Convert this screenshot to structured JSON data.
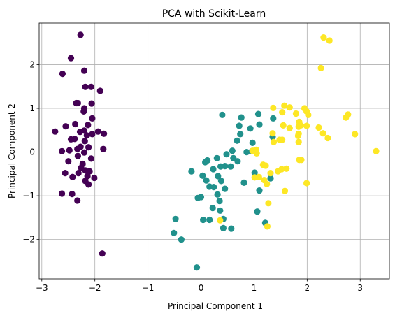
{
  "chart_data": {
    "type": "scatter",
    "title": "PCA with Scikit-Learn",
    "xlabel": "Principal Component 1",
    "ylabel": "Principal Component 2",
    "xlim": [
      -3.05,
      3.55
    ],
    "ylim": [
      -2.9,
      2.95
    ],
    "xticks": [
      -3,
      -2,
      -1,
      0,
      1,
      2,
      3
    ],
    "yticks": [
      -2,
      -1,
      0,
      1,
      2
    ],
    "tick_labels_x": [
      "−3",
      "−2",
      "−1",
      "0",
      "1",
      "2",
      "3"
    ],
    "tick_labels_y": [
      "−2",
      "−1",
      "0",
      "1",
      "2"
    ],
    "grid": true,
    "colors": [
      "#440154",
      "#21918c",
      "#fde725"
    ],
    "series": [
      {
        "color_index": 0,
        "points": [
          [
            -2.27,
            2.68
          ],
          [
            -2.45,
            2.15
          ],
          [
            -2.61,
            1.79
          ],
          [
            -2.2,
            1.86
          ],
          [
            -2.18,
            1.49
          ],
          [
            -2.07,
            1.49
          ],
          [
            -1.9,
            1.4
          ],
          [
            -2.32,
            1.12
          ],
          [
            -2.35,
            1.12
          ],
          [
            -2.06,
            1.11
          ],
          [
            -2.2,
            1.0
          ],
          [
            -2.21,
            0.93
          ],
          [
            -2.05,
            0.77
          ],
          [
            -2.37,
            0.64
          ],
          [
            -2.55,
            0.59
          ],
          [
            -2.13,
            0.62
          ],
          [
            -2.2,
            0.49
          ],
          [
            -2.28,
            0.46
          ],
          [
            -2.75,
            0.47
          ],
          [
            -1.94,
            0.47
          ],
          [
            -1.83,
            0.42
          ],
          [
            -2.05,
            0.41
          ],
          [
            -2.15,
            0.38
          ],
          [
            -2.38,
            0.3
          ],
          [
            -2.45,
            0.29
          ],
          [
            -2.19,
            0.25
          ],
          [
            -2.27,
            0.12
          ],
          [
            -2.12,
            0.11
          ],
          [
            -2.33,
            0.07
          ],
          [
            -2.48,
            0.04
          ],
          [
            -1.84,
            0.07
          ],
          [
            -2.62,
            0.02
          ],
          [
            -2.2,
            -0.01
          ],
          [
            -2.32,
            -0.09
          ],
          [
            -2.07,
            -0.15
          ],
          [
            -2.5,
            -0.21
          ],
          [
            -2.23,
            -0.27
          ],
          [
            -2.26,
            -0.36
          ],
          [
            -2.18,
            -0.42
          ],
          [
            -2.1,
            -0.44
          ],
          [
            -2.56,
            -0.48
          ],
          [
            -2.31,
            -0.48
          ],
          [
            -2.42,
            -0.57
          ],
          [
            -2.14,
            -0.55
          ],
          [
            -2.01,
            -0.59
          ],
          [
            -2.18,
            -0.66
          ],
          [
            -2.12,
            -0.74
          ],
          [
            -2.62,
            -0.95
          ],
          [
            -2.43,
            -0.96
          ],
          [
            -2.33,
            -1.11
          ],
          [
            -1.86,
            -2.32
          ]
        ]
      },
      {
        "color_index": 1,
        "points": [
          [
            0.4,
            0.85
          ],
          [
            0.76,
            0.79
          ],
          [
            1.08,
            0.87
          ],
          [
            1.36,
            0.77
          ],
          [
            0.72,
            0.6
          ],
          [
            0.93,
            0.54
          ],
          [
            1.1,
            0.63
          ],
          [
            0.74,
            0.41
          ],
          [
            1.35,
            0.35
          ],
          [
            0.68,
            0.26
          ],
          [
            0.97,
            0.21
          ],
          [
            0.59,
            0.03
          ],
          [
            0.48,
            -0.05
          ],
          [
            0.86,
            0.0
          ],
          [
            0.96,
            0.02
          ],
          [
            0.61,
            -0.14
          ],
          [
            0.69,
            -0.21
          ],
          [
            0.3,
            -0.14
          ],
          [
            0.45,
            -0.32
          ],
          [
            0.12,
            -0.19
          ],
          [
            0.08,
            -0.23
          ],
          [
            0.23,
            -0.39
          ],
          [
            0.37,
            -0.33
          ],
          [
            0.56,
            -0.33
          ],
          [
            -0.18,
            -0.44
          ],
          [
            0.32,
            -0.55
          ],
          [
            0.03,
            -0.54
          ],
          [
            1.01,
            -0.47
          ],
          [
            1.31,
            -0.6
          ],
          [
            0.1,
            -0.65
          ],
          [
            0.38,
            -0.66
          ],
          [
            0.81,
            -0.7
          ],
          [
            0.16,
            -0.79
          ],
          [
            0.24,
            -0.8
          ],
          [
            0.45,
            -0.84
          ],
          [
            1.1,
            -0.88
          ],
          [
            0.31,
            -0.97
          ],
          [
            0.0,
            -1.03
          ],
          [
            -0.06,
            -1.05
          ],
          [
            0.35,
            -1.12
          ],
          [
            0.22,
            -1.28
          ],
          [
            0.36,
            -1.34
          ],
          [
            0.42,
            -1.53
          ],
          [
            0.04,
            -1.55
          ],
          [
            0.16,
            -1.55
          ],
          [
            0.57,
            -1.75
          ],
          [
            0.42,
            -1.74
          ],
          [
            1.06,
            -1.36
          ],
          [
            1.21,
            -1.62
          ],
          [
            -0.48,
            -1.53
          ],
          [
            -0.51,
            -1.85
          ],
          [
            -0.37,
            -2.0
          ],
          [
            -0.08,
            -2.64
          ]
        ]
      },
      {
        "color_index": 2,
        "points": [
          [
            2.31,
            2.62
          ],
          [
            2.42,
            2.55
          ],
          [
            2.26,
            1.92
          ],
          [
            1.57,
            1.06
          ],
          [
            1.67,
            1.02
          ],
          [
            1.36,
            1.01
          ],
          [
            1.95,
            1.0
          ],
          [
            1.99,
            0.93
          ],
          [
            1.79,
            0.88
          ],
          [
            2.02,
            0.85
          ],
          [
            1.53,
            0.91
          ],
          [
            2.77,
            0.86
          ],
          [
            2.73,
            0.79
          ],
          [
            1.85,
            0.69
          ],
          [
            1.88,
            0.61
          ],
          [
            1.84,
            0.58
          ],
          [
            1.99,
            0.6
          ],
          [
            2.22,
            0.56
          ],
          [
            1.55,
            0.61
          ],
          [
            1.67,
            0.55
          ],
          [
            2.3,
            0.43
          ],
          [
            2.39,
            0.32
          ],
          [
            2.9,
            0.41
          ],
          [
            1.84,
            0.42
          ],
          [
            1.83,
            0.37
          ],
          [
            1.35,
            0.43
          ],
          [
            1.48,
            0.28
          ],
          [
            1.53,
            0.28
          ],
          [
            1.37,
            0.23
          ],
          [
            1.84,
            0.23
          ],
          [
            3.3,
            0.02
          ],
          [
            1.0,
            0.03
          ],
          [
            0.97,
            0.03
          ],
          [
            1.05,
            -0.03
          ],
          [
            1.04,
            0.05
          ],
          [
            1.17,
            -0.29
          ],
          [
            1.22,
            -0.31
          ],
          [
            1.89,
            -0.18
          ],
          [
            1.85,
            -0.18
          ],
          [
            1.61,
            -0.38
          ],
          [
            1.52,
            -0.39
          ],
          [
            1.45,
            -0.44
          ],
          [
            1.31,
            -0.48
          ],
          [
            1.09,
            -0.57
          ],
          [
            1.01,
            -0.58
          ],
          [
            1.19,
            -0.64
          ],
          [
            1.24,
            -0.73
          ],
          [
            1.99,
            -0.71
          ],
          [
            1.58,
            -0.89
          ],
          [
            1.27,
            -1.17
          ],
          [
            0.36,
            -1.56
          ],
          [
            1.25,
            -1.7
          ]
        ]
      }
    ]
  }
}
